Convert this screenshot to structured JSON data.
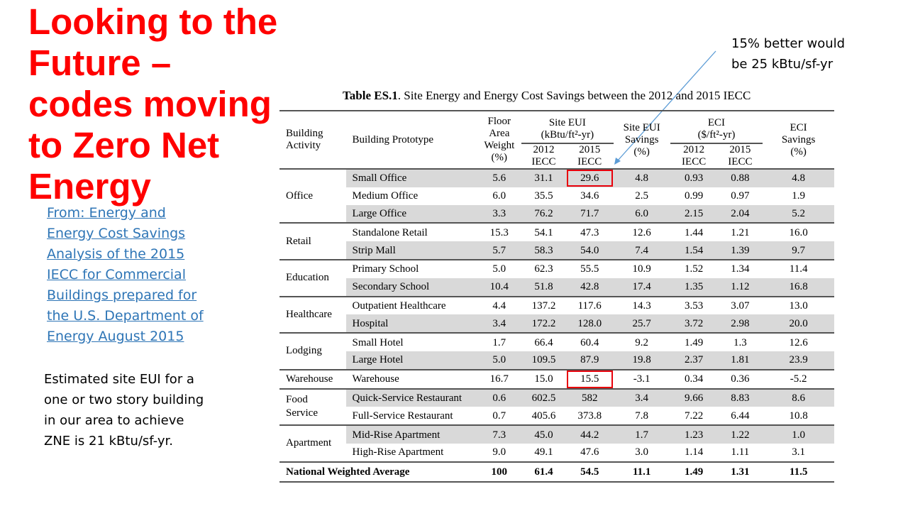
{
  "slide": {
    "title_lines": [
      "Looking to the",
      "Future –",
      "codes moving",
      "to Zero Net",
      "Energy"
    ],
    "source_link_lines": [
      "From: Energy and",
      "Energy Cost Savings",
      "Analysis of the 2015",
      "IECC for Commercial",
      "Buildings prepared for",
      "the U.S. Department of",
      "Energy August 2015"
    ],
    "estimate_note_lines": [
      "Estimated site EUI for a",
      "one or two story building",
      "in our area to achieve",
      "ZNE is 21 kBtu/sf-yr."
    ],
    "callout_lines": [
      "15% better would",
      "be 25 kBtu/sf-yr"
    ],
    "accent_color": "#ff0000",
    "link_color": "#2e75b6",
    "highlight_box_color": "#e8000b"
  },
  "table": {
    "caption_bold": "Table ES.1",
    "caption_rest": ". Site Energy and Energy Cost Savings between the 2012 and 2015 IECC",
    "headers": {
      "activity_lines": [
        "Building",
        "Activity"
      ],
      "prototype": "Building Prototype",
      "floor_area_lines": [
        "Floor",
        "Area",
        "Weight",
        "(%)"
      ],
      "site_eui_lines": [
        "Site EUI",
        "(kBtu/ft²-yr)"
      ],
      "site_eui_savings_lines": [
        "Site EUI",
        "Savings",
        "(%)"
      ],
      "eci_lines": [
        "ECI",
        "($/ft²-yr)"
      ],
      "eci_savings_lines": [
        "ECI",
        "Savings",
        "(%)"
      ],
      "iecc_2012_lines": [
        "2012",
        "IECC"
      ],
      "iecc_2015_lines": [
        "2015",
        "IECC"
      ]
    },
    "groups": [
      {
        "activity": "Office",
        "rows": [
          {
            "prototype": "Small Office",
            "weight": "5.6",
            "site_2012": "31.1",
            "site_2015": "29.6",
            "site_savings": "4.8",
            "eci_2012": "0.93",
            "eci_2015": "0.88",
            "eci_savings": "4.8",
            "highlight": true
          },
          {
            "prototype": "Medium Office",
            "weight": "6.0",
            "site_2012": "35.5",
            "site_2015": "34.6",
            "site_savings": "2.5",
            "eci_2012": "0.99",
            "eci_2015": "0.97",
            "eci_savings": "1.9"
          },
          {
            "prototype": "Large Office",
            "weight": "3.3",
            "site_2012": "76.2",
            "site_2015": "71.7",
            "site_savings": "6.0",
            "eci_2012": "2.15",
            "eci_2015": "2.04",
            "eci_savings": "5.2"
          }
        ]
      },
      {
        "activity": "Retail",
        "rows": [
          {
            "prototype": "Standalone  Retail",
            "weight": "15.3",
            "site_2012": "54.1",
            "site_2015": "47.3",
            "site_savings": "12.6",
            "eci_2012": "1.44",
            "eci_2015": "1.21",
            "eci_savings": "16.0"
          },
          {
            "prototype": "Strip Mall",
            "weight": "5.7",
            "site_2012": "58.3",
            "site_2015": "54.0",
            "site_savings": "7.4",
            "eci_2012": "1.54",
            "eci_2015": "1.39",
            "eci_savings": "9.7"
          }
        ]
      },
      {
        "activity": "Education",
        "rows": [
          {
            "prototype": "Primary School",
            "weight": "5.0",
            "site_2012": "62.3",
            "site_2015": "55.5",
            "site_savings": "10.9",
            "eci_2012": "1.52",
            "eci_2015": "1.34",
            "eci_savings": "11.4"
          },
          {
            "prototype": "Secondary School",
            "weight": "10.4",
            "site_2012": "51.8",
            "site_2015": "42.8",
            "site_savings": "17.4",
            "eci_2012": "1.35",
            "eci_2015": "1.12",
            "eci_savings": "16.8"
          }
        ]
      },
      {
        "activity": "Healthcare",
        "rows": [
          {
            "prototype": "Outpatient Healthcare",
            "weight": "4.4",
            "site_2012": "137.2",
            "site_2015": "117.6",
            "site_savings": "14.3",
            "eci_2012": "3.53",
            "eci_2015": "3.07",
            "eci_savings": "13.0"
          },
          {
            "prototype": "Hospital",
            "weight": "3.4",
            "site_2012": "172.2",
            "site_2015": "128.0",
            "site_savings": "25.7",
            "eci_2012": "3.72",
            "eci_2015": "2.98",
            "eci_savings": "20.0"
          }
        ]
      },
      {
        "activity": "Lodging",
        "rows": [
          {
            "prototype": "Small Hotel",
            "weight": "1.7",
            "site_2012": "66.4",
            "site_2015": "60.4",
            "site_savings": "9.2",
            "eci_2012": "1.49",
            "eci_2015": "1.3",
            "eci_savings": "12.6"
          },
          {
            "prototype": "Large Hotel",
            "weight": "5.0",
            "site_2012": "109.5",
            "site_2015": "87.9",
            "site_savings": "19.8",
            "eci_2012": "2.37",
            "eci_2015": "1.81",
            "eci_savings": "23.9"
          }
        ]
      },
      {
        "activity": "Warehouse",
        "rows": [
          {
            "prototype": "Warehouse",
            "weight": "16.7",
            "site_2012": "15.0",
            "site_2015": "15.5",
            "site_savings": "-3.1",
            "eci_2012": "0.34",
            "eci_2015": "0.36",
            "eci_savings": "-5.2",
            "highlight": true
          }
        ]
      },
      {
        "activity": "Food\nService",
        "rows": [
          {
            "prototype": "Quick-Service Restaurant",
            "weight": "0.6",
            "site_2012": "602.5",
            "site_2015": "582",
            "site_savings": "3.4",
            "eci_2012": "9.66",
            "eci_2015": "8.83",
            "eci_savings": "8.6"
          },
          {
            "prototype": "Full-Service Restaurant",
            "weight": "0.7",
            "site_2012": "405.6",
            "site_2015": "373.8",
            "site_savings": "7.8",
            "eci_2012": "7.22",
            "eci_2015": "6.44",
            "eci_savings": "10.8"
          }
        ]
      },
      {
        "activity": "Apartment",
        "rows": [
          {
            "prototype": "Mid-Rise Apartment",
            "weight": "7.3",
            "site_2012": "45.0",
            "site_2015": "44.2",
            "site_savings": "1.7",
            "eci_2012": "1.23",
            "eci_2015": "1.22",
            "eci_savings": "1.0"
          },
          {
            "prototype": "High-Rise Apartment",
            "weight": "9.0",
            "site_2012": "49.1",
            "site_2015": "47.6",
            "site_savings": "3.0",
            "eci_2012": "1.14",
            "eci_2015": "1.11",
            "eci_savings": "3.1"
          }
        ]
      }
    ],
    "total": {
      "label": "National Weighted Average",
      "weight": "100",
      "site_2012": "61.4",
      "site_2015": "54.5",
      "site_savings": "11.1",
      "eci_2012": "1.49",
      "eci_2015": "1.31",
      "eci_savings": "11.5"
    }
  }
}
